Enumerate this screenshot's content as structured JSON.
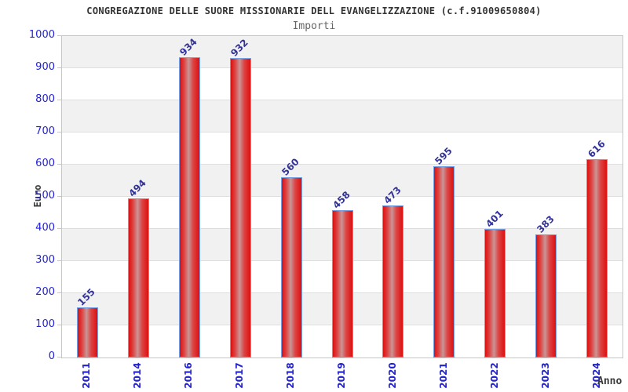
{
  "chart_data": {
    "type": "bar",
    "title": "CONGREGAZIONE DELLE SUORE MISSIONARIE DELL EVANGELIZZAZIONE (c.f.91009650804)",
    "subtitle": "Importi",
    "categories": [
      "2011",
      "2014",
      "2016",
      "2017",
      "2018",
      "2019",
      "2020",
      "2021",
      "2022",
      "2023",
      "2024"
    ],
    "values": [
      155,
      494,
      934,
      932,
      560,
      458,
      473,
      595,
      401,
      383,
      616
    ],
    "xlabel": "Anno",
    "ylabel": "Euro",
    "ylim": [
      0,
      1000
    ],
    "ytick_step": 100,
    "grid": true,
    "legend": "none",
    "layout_hints": {
      "alternating_horizontal_bands": true,
      "value_labels_rotation_deg": -45,
      "x_tick_rotation_deg": -90
    },
    "colors": {
      "bar_fill_edge": "#dd1010",
      "bar_fill_center": "#c99595",
      "bar_border": "#74a2e8",
      "y_tick_label": "#2222dd",
      "x_tick_label": "#2222cc",
      "value_label": "#333399",
      "axis_title": "#3a3a3a",
      "title": "#333333",
      "subtitle": "#666666",
      "band_gray": "#f1f1f1",
      "gridline": "#dedede",
      "plot_border": "#c6c6c6",
      "background": "#ffffff"
    }
  }
}
